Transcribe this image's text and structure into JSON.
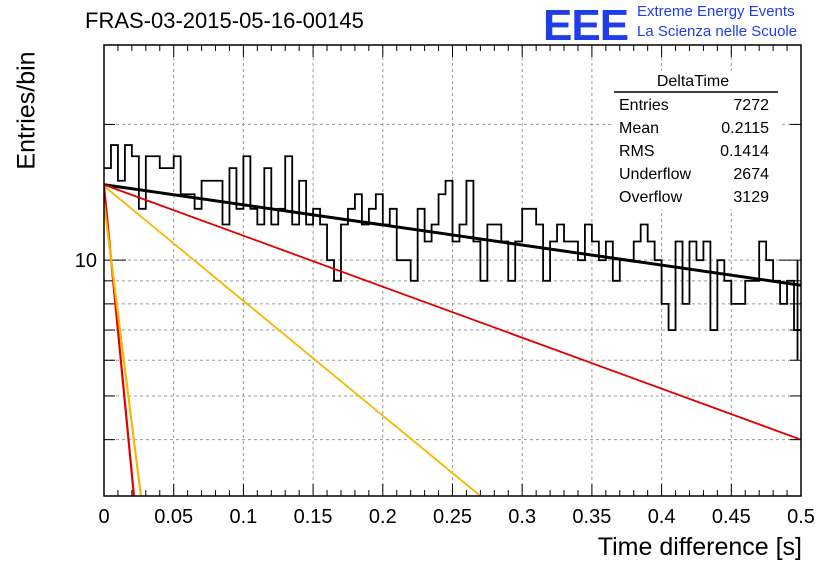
{
  "title": "FRAS-03-2015-05-16-00145",
  "logo": {
    "mark": "EEE",
    "line1": "Extreme Energy Events",
    "line2": "La Scienza nelle Scuole"
  },
  "colors": {
    "histogram": "#000000",
    "fit_total": "#000000",
    "fit_slow": "#e00000",
    "fit_fast": "#e00000",
    "fit_mid": "#f5b800",
    "fit_mid2": "#f5b800",
    "grid": "#9a9a9a"
  },
  "stats": {
    "title": "DeltaTime",
    "rows": [
      {
        "label": "Entries",
        "value": "7272"
      },
      {
        "label": "Mean",
        "value": "0.2115"
      },
      {
        "label": "RMS",
        "value": "0.1414"
      },
      {
        "label": "Underflow",
        "value": "2674"
      },
      {
        "label": "Overflow",
        "value": "3129"
      }
    ]
  },
  "chart_data": {
    "type": "histogram",
    "xlabel": "Time difference [s]",
    "ylabel": "Entries/bin",
    "xlim": [
      0,
      0.5
    ],
    "ylim": [
      3.0,
      30.0
    ],
    "yscale": "log",
    "grid": true,
    "legend": "top-right",
    "x_ticks": [
      "0",
      "0.05",
      "0.1",
      "0.15",
      "0.2",
      "0.25",
      "0.3",
      "0.35",
      "0.4",
      "0.45",
      "0.5"
    ],
    "y_tick_labels": [
      {
        "value": 10,
        "label": "10"
      }
    ],
    "bin_width": 0.005,
    "histogram": [
      16,
      18,
      15,
      18,
      17,
      13,
      17,
      17,
      16,
      16,
      17,
      14,
      14,
      13,
      15,
      15,
      15,
      12,
      16,
      13,
      17,
      13,
      12,
      16,
      12,
      13,
      17,
      12,
      15,
      12,
      13,
      12,
      10,
      9,
      12,
      13,
      14,
      12,
      13,
      14,
      12,
      13,
      10,
      10,
      9,
      13,
      11,
      12,
      14,
      15,
      11,
      12,
      15,
      11,
      9,
      12,
      12,
      11,
      9,
      11,
      13,
      13,
      12,
      9,
      11,
      12,
      11,
      11,
      10,
      12,
      11,
      10,
      11,
      9,
      10,
      10,
      11,
      12,
      11,
      10,
      8,
      7,
      11,
      8,
      11,
      10,
      11,
      7,
      10,
      9,
      8,
      8,
      9,
      9,
      11,
      10,
      9,
      8,
      9,
      7
    ],
    "histogram_last_error": [
      6,
      10
    ],
    "fits": [
      {
        "name": "total",
        "x": [
          0.0,
          0.5
        ],
        "y": [
          14.7,
          8.8
        ]
      },
      {
        "name": "slow",
        "x": [
          0.0,
          0.5
        ],
        "y": [
          14.7,
          4.0
        ]
      },
      {
        "name": "mid",
        "x": [
          0.0,
          0.27
        ],
        "y": [
          14.6,
          3.0
        ]
      },
      {
        "name": "fast_a",
        "x": [
          0.0,
          0.0215
        ],
        "y": [
          14.6,
          3.0
        ]
      },
      {
        "name": "fast_b",
        "x": [
          0.0,
          0.0265
        ],
        "y": [
          13.4,
          3.0
        ]
      }
    ]
  }
}
